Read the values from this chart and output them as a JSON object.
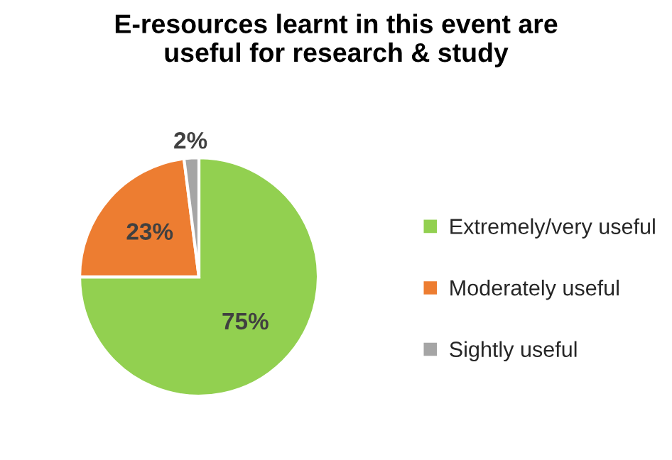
{
  "chart_data": {
    "type": "pie",
    "title": "E-resources learnt in this event are\nuseful for research & study",
    "categories": [
      "Extremely/very useful",
      "Moderately useful",
      "Sightly useful"
    ],
    "values": [
      75,
      23,
      2
    ],
    "value_labels": [
      "75%",
      "23%",
      "2%"
    ],
    "colors": [
      "#92d050",
      "#ed7d31",
      "#a5a5a5"
    ],
    "legend": "right"
  }
}
